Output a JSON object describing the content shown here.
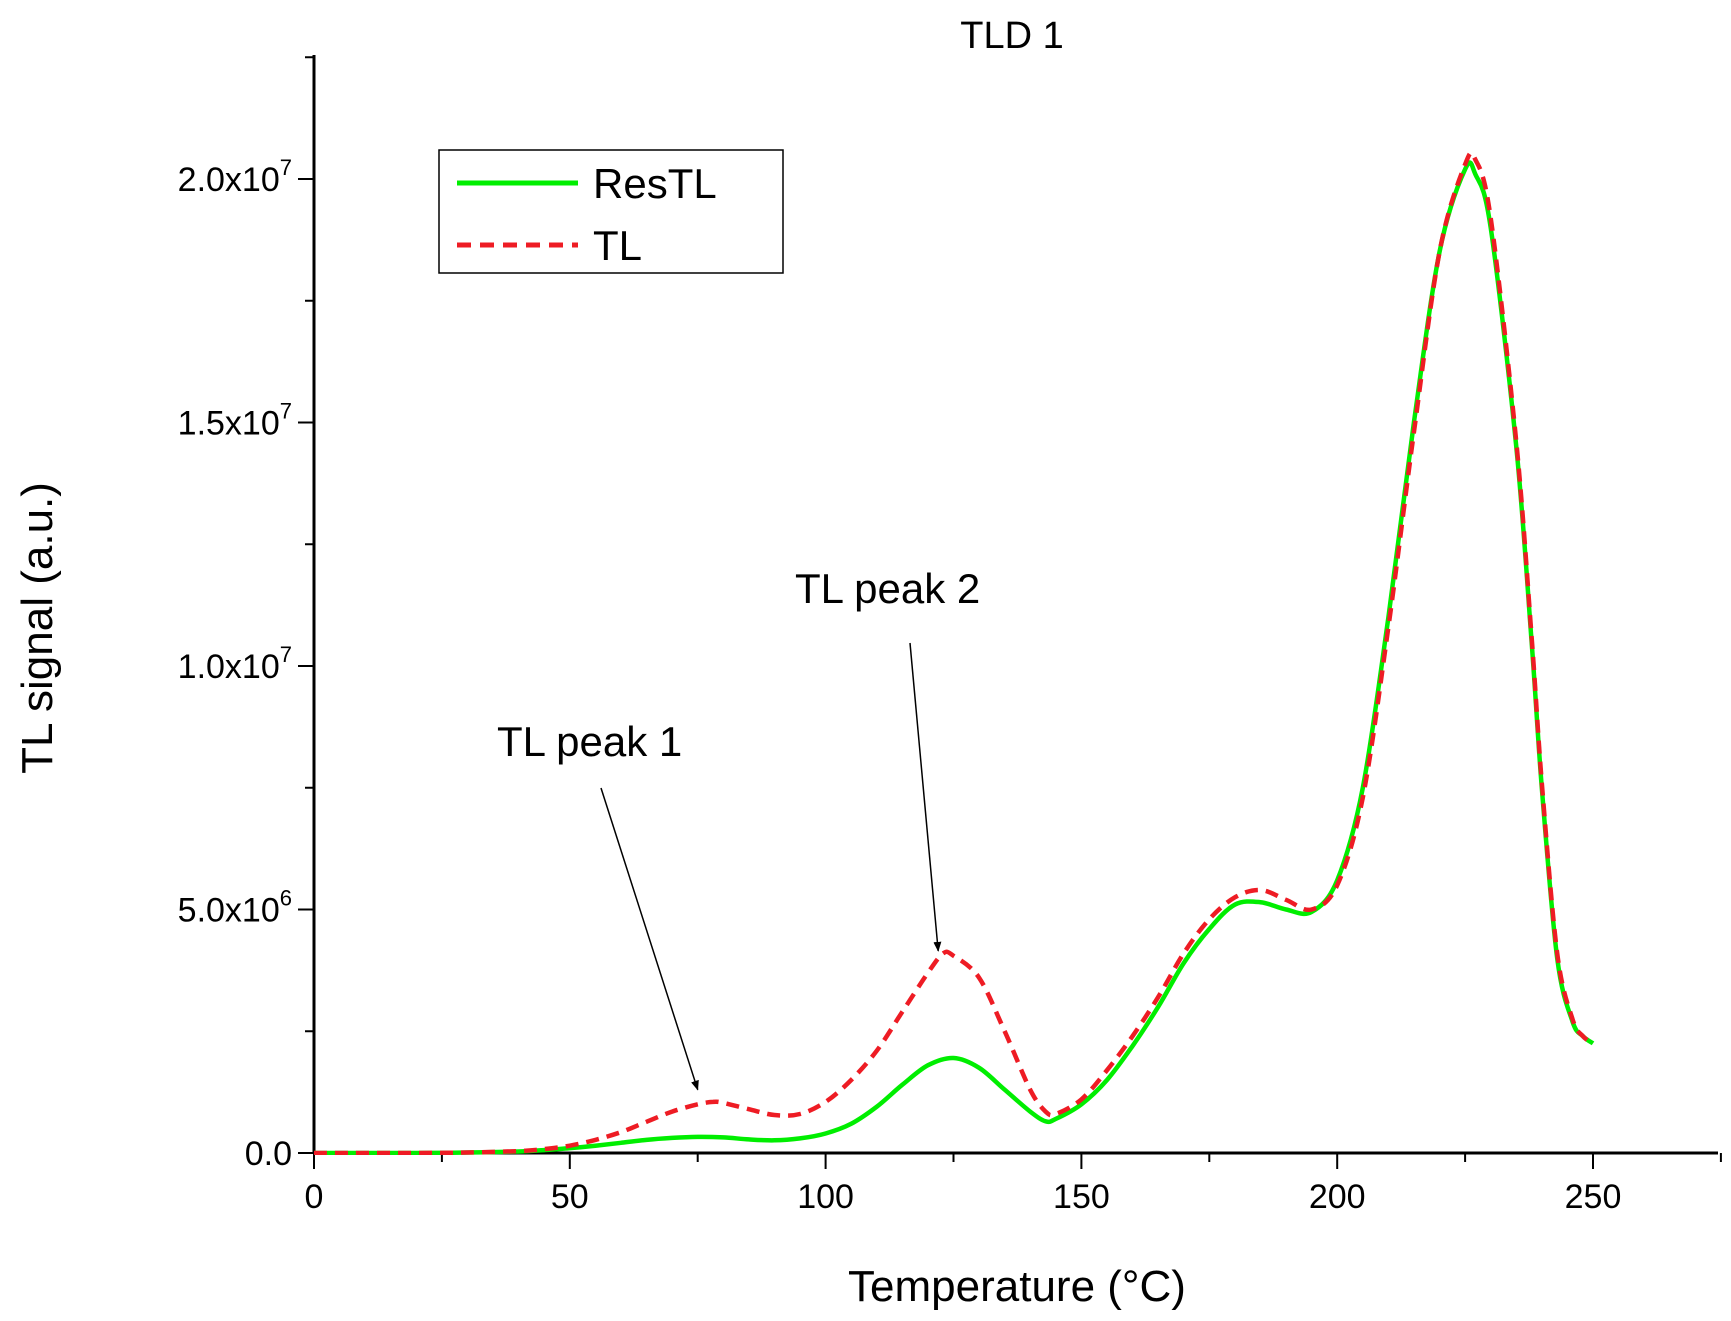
{
  "chart_data": {
    "type": "line",
    "title": "TLD 1",
    "xlabel": "Temperature (°C)",
    "ylabel": "TL signal (a.u.)",
    "xlim": [
      0,
      275
    ],
    "ylim": [
      0,
      22500000
    ],
    "x_ticks": [
      0,
      50,
      100,
      150,
      200,
      250
    ],
    "x_tick_labels": [
      "0",
      "50",
      "100",
      "150",
      "200",
      "250"
    ],
    "y_ticks": [
      {
        "value": 0,
        "mantissa": "0.0",
        "exponent": ""
      },
      {
        "value": 5000000,
        "mantissa": "5.0x10",
        "exponent": "6"
      },
      {
        "value": 10000000,
        "mantissa": "1.0x10",
        "exponent": "7"
      },
      {
        "value": 15000000,
        "mantissa": "1.5x10",
        "exponent": "7"
      },
      {
        "value": 20000000,
        "mantissa": "2.0x10",
        "exponent": "7"
      }
    ],
    "legend_position": "top-left",
    "series": [
      {
        "name": "ResTL",
        "color": "#00ee00",
        "style": "solid",
        "x": [
          0,
          20,
          30,
          40,
          45,
          50,
          55,
          60,
          65,
          70,
          75,
          80,
          85,
          90,
          95,
          100,
          105,
          110,
          115,
          120,
          125,
          130,
          135,
          140,
          143,
          145,
          150,
          155,
          160,
          165,
          170,
          175,
          180,
          185,
          190,
          195,
          200,
          205,
          210,
          215,
          220,
          225,
          227,
          230,
          235,
          238,
          240,
          243,
          246,
          248,
          250
        ],
        "y": [
          0,
          0,
          10000,
          30000,
          60000,
          100000,
          150000,
          210000,
          270000,
          310000,
          330000,
          320000,
          280000,
          260000,
          300000,
          400000,
          600000,
          950000,
          1400000,
          1800000,
          1950000,
          1750000,
          1300000,
          850000,
          650000,
          700000,
          1000000,
          1500000,
          2200000,
          3000000,
          3900000,
          4600000,
          5100000,
          5150000,
          5000000,
          4950000,
          5600000,
          7500000,
          11000000,
          15000000,
          18500000,
          20200000,
          20100000,
          19000000,
          14500000,
          10500000,
          7500000,
          4000000,
          2700000,
          2400000,
          2250000
        ]
      },
      {
        "name": "TL",
        "color": "#ee1c24",
        "style": "dashed",
        "x": [
          0,
          20,
          30,
          40,
          45,
          50,
          55,
          60,
          65,
          70,
          75,
          78,
          80,
          85,
          90,
          95,
          100,
          105,
          110,
          115,
          120,
          123,
          125,
          130,
          135,
          140,
          143,
          145,
          150,
          155,
          160,
          165,
          170,
          175,
          180,
          185,
          190,
          195,
          200,
          205,
          210,
          215,
          220,
          225,
          227,
          230,
          235,
          238,
          240,
          243,
          246,
          248,
          250
        ],
        "y": [
          0,
          0,
          10000,
          40000,
          80000,
          150000,
          270000,
          430000,
          640000,
          850000,
          1000000,
          1050000,
          1030000,
          900000,
          780000,
          800000,
          1050000,
          1500000,
          2100000,
          2900000,
          3700000,
          4100000,
          4050000,
          3600000,
          2500000,
          1300000,
          850000,
          800000,
          1100000,
          1700000,
          2400000,
          3200000,
          4100000,
          4800000,
          5250000,
          5400000,
          5200000,
          5000000,
          5500000,
          7300000,
          10800000,
          14800000,
          18500000,
          20300000,
          20400000,
          19200000,
          14600000,
          10600000,
          7600000,
          4100000,
          2750000,
          2400000,
          2250000
        ]
      }
    ],
    "annotations": [
      {
        "text": "TL peak 1",
        "target_x": 75,
        "target_y": 1300000
      },
      {
        "text": "TL peak 2",
        "target_x": 122,
        "target_y": 4150000
      }
    ]
  }
}
